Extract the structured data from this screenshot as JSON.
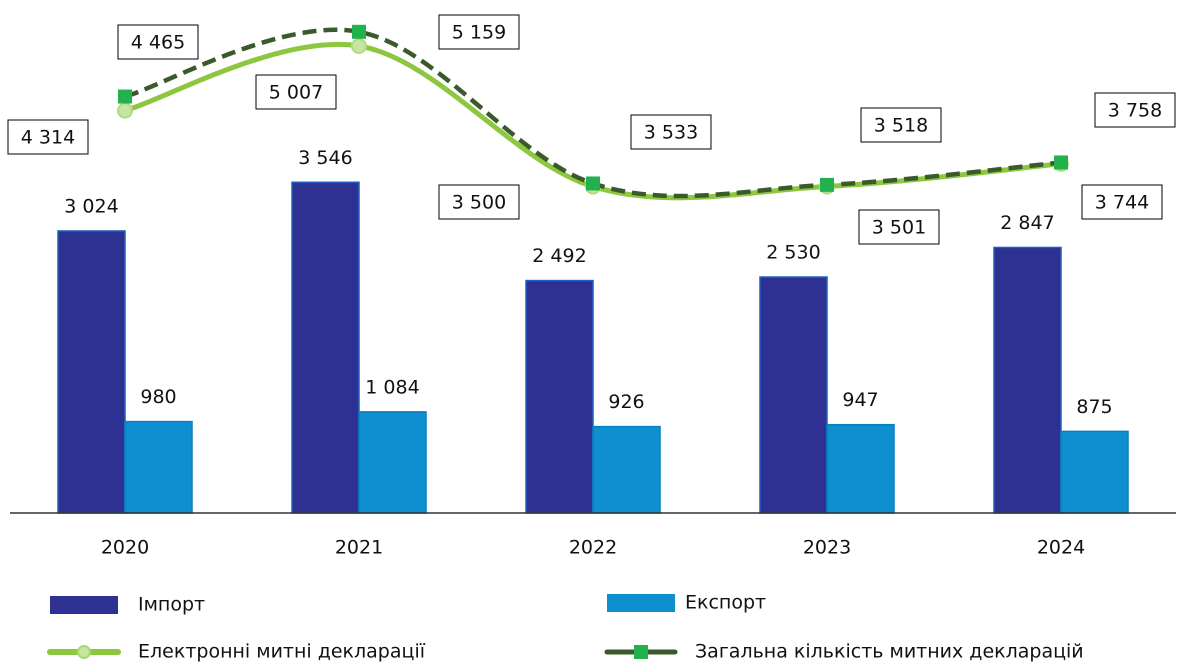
{
  "chart_data": {
    "type": "bar",
    "categories": [
      "2020",
      "2021",
      "2022",
      "2023",
      "2024"
    ],
    "ylim": [
      0,
      5500
    ],
    "series": [
      {
        "name": "Імпорт",
        "color": "#2e3192",
        "values": [
          3024,
          3546,
          2492,
          2530,
          2847
        ],
        "value_labels": [
          "3 024",
          "3 546",
          "2 492",
          "2 530",
          "2 847"
        ]
      },
      {
        "name": "Експорт",
        "color": "#0e8fcf",
        "values": [
          980,
          1084,
          926,
          947,
          875
        ],
        "value_labels": [
          "980",
          "1 084",
          "926",
          "947",
          "875"
        ]
      },
      {
        "name": "Електронні митні декларації",
        "type": "line",
        "color": "#8dc63f",
        "values": [
          4314,
          5007,
          3500,
          3501,
          3744
        ],
        "value_labels": [
          "4 314",
          "5 007",
          "3 500",
          "3 501",
          "3 744"
        ]
      },
      {
        "name": "Загальна кількість митних декларацій",
        "type": "line",
        "color": "#3b5a2b",
        "marker_color": "#22b14c",
        "dashed": true,
        "values": [
          4465,
          5159,
          3533,
          3518,
          3758
        ],
        "value_labels": [
          "4 465",
          "5 159",
          "3 533",
          "3 518",
          "3 758"
        ]
      }
    ]
  }
}
